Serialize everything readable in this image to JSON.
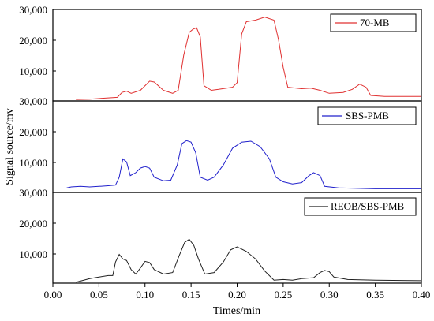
{
  "chart_data": {
    "type": "line",
    "xlabel": "Times/min",
    "ylabel": "Signal source/mv",
    "xlim": [
      0,
      0.4
    ],
    "ylim": [
      0,
      30000
    ],
    "x_ticks": [
      "0.00",
      "0.05",
      "0.10",
      "0.15",
      "0.20",
      "0.25",
      "0.30",
      "0.35",
      "0.40"
    ],
    "panels": [
      {
        "y_tick_labels": [
          "10,000",
          "20,000",
          "30,000"
        ],
        "bottom_label": "30,000",
        "series": {
          "name": "70-MB",
          "color": "#e03030",
          "points": [
            [
              0.025,
              500
            ],
            [
              0.04,
              600
            ],
            [
              0.055,
              900
            ],
            [
              0.07,
              1200
            ],
            [
              0.075,
              2800
            ],
            [
              0.08,
              3200
            ],
            [
              0.085,
              2500
            ],
            [
              0.095,
              3500
            ],
            [
              0.105,
              6500
            ],
            [
              0.11,
              6200
            ],
            [
              0.12,
              3500
            ],
            [
              0.13,
              2500
            ],
            [
              0.136,
              3500
            ],
            [
              0.142,
              15000
            ],
            [
              0.148,
              22500
            ],
            [
              0.152,
              23500
            ],
            [
              0.156,
              24000
            ],
            [
              0.16,
              21000
            ],
            [
              0.164,
              5000
            ],
            [
              0.172,
              3500
            ],
            [
              0.18,
              3800
            ],
            [
              0.195,
              4500
            ],
            [
              0.2,
              6000
            ],
            [
              0.205,
              22000
            ],
            [
              0.21,
              26000
            ],
            [
              0.22,
              26500
            ],
            [
              0.23,
              27500
            ],
            [
              0.24,
              26500
            ],
            [
              0.245,
              20000
            ],
            [
              0.25,
              11000
            ],
            [
              0.255,
              4500
            ],
            [
              0.27,
              4000
            ],
            [
              0.28,
              4200
            ],
            [
              0.29,
              3500
            ],
            [
              0.3,
              2500
            ],
            [
              0.315,
              2800
            ],
            [
              0.325,
              3800
            ],
            [
              0.333,
              5500
            ],
            [
              0.34,
              4500
            ],
            [
              0.345,
              1800
            ],
            [
              0.36,
              1500
            ],
            [
              0.4,
              1500
            ]
          ]
        }
      },
      {
        "y_tick_labels": [
          "10,000",
          "20,000",
          "30,000"
        ],
        "bottom_label": "30,000",
        "series": {
          "name": "SBS-PMB",
          "color": "#2020cc",
          "points": [
            [
              0.015,
              1500
            ],
            [
              0.02,
              1800
            ],
            [
              0.03,
              2000
            ],
            [
              0.04,
              1800
            ],
            [
              0.05,
              2000
            ],
            [
              0.06,
              2200
            ],
            [
              0.068,
              2400
            ],
            [
              0.072,
              5000
            ],
            [
              0.076,
              11000
            ],
            [
              0.08,
              10000
            ],
            [
              0.084,
              5500
            ],
            [
              0.09,
              6500
            ],
            [
              0.095,
              8000
            ],
            [
              0.1,
              8500
            ],
            [
              0.105,
              8000
            ],
            [
              0.11,
              5000
            ],
            [
              0.12,
              3800
            ],
            [
              0.128,
              4000
            ],
            [
              0.135,
              9000
            ],
            [
              0.14,
              16000
            ],
            [
              0.145,
              17000
            ],
            [
              0.15,
              16500
            ],
            [
              0.155,
              13000
            ],
            [
              0.16,
              5000
            ],
            [
              0.168,
              4000
            ],
            [
              0.175,
              5000
            ],
            [
              0.185,
              9000
            ],
            [
              0.195,
              14500
            ],
            [
              0.205,
              16500
            ],
            [
              0.215,
              16800
            ],
            [
              0.225,
              15000
            ],
            [
              0.235,
              11000
            ],
            [
              0.242,
              5000
            ],
            [
              0.25,
              3500
            ],
            [
              0.26,
              2800
            ],
            [
              0.27,
              3200
            ],
            [
              0.278,
              5500
            ],
            [
              0.283,
              6500
            ],
            [
              0.29,
              5500
            ],
            [
              0.295,
              2000
            ],
            [
              0.31,
              1500
            ],
            [
              0.35,
              1200
            ],
            [
              0.4,
              1200
            ]
          ]
        }
      },
      {
        "y_tick_labels": [
          "10,000",
          "20,000"
        ],
        "bottom_label": "",
        "series": {
          "name": "REOB/SBS-PMB",
          "color": "#202020",
          "points": [
            [
              0.025,
              300
            ],
            [
              0.04,
              1500
            ],
            [
              0.05,
              2000
            ],
            [
              0.06,
              2500
            ],
            [
              0.065,
              2500
            ],
            [
              0.068,
              7000
            ],
            [
              0.072,
              9500
            ],
            [
              0.076,
              8000
            ],
            [
              0.08,
              7500
            ],
            [
              0.085,
              4500
            ],
            [
              0.09,
              3000
            ],
            [
              0.095,
              5000
            ],
            [
              0.1,
              7200
            ],
            [
              0.105,
              6800
            ],
            [
              0.11,
              4500
            ],
            [
              0.12,
              3000
            ],
            [
              0.13,
              3500
            ],
            [
              0.137,
              9000
            ],
            [
              0.143,
              13500
            ],
            [
              0.148,
              14500
            ],
            [
              0.153,
              12500
            ],
            [
              0.158,
              8000
            ],
            [
              0.165,
              3000
            ],
            [
              0.175,
              3500
            ],
            [
              0.185,
              7000
            ],
            [
              0.193,
              11000
            ],
            [
              0.2,
              12000
            ],
            [
              0.21,
              10500
            ],
            [
              0.22,
              8000
            ],
            [
              0.23,
              4000
            ],
            [
              0.24,
              1000
            ],
            [
              0.25,
              1200
            ],
            [
              0.26,
              1000
            ],
            [
              0.27,
              1500
            ],
            [
              0.283,
              1800
            ],
            [
              0.29,
              3500
            ],
            [
              0.295,
              4200
            ],
            [
              0.3,
              3800
            ],
            [
              0.305,
              2000
            ],
            [
              0.32,
              1200
            ],
            [
              0.35,
              1000
            ],
            [
              0.4,
              800
            ]
          ]
        }
      }
    ]
  }
}
